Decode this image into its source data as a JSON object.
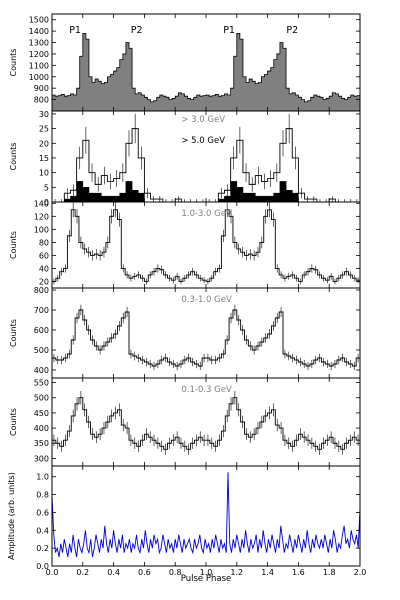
{
  "figure": {
    "xlabel": "Pulse Phase",
    "xticks": [
      "0.0",
      "0.2",
      "0.4",
      "0.6",
      "0.8",
      "1.0",
      "1.2",
      "1.4",
      "1.6",
      "1.8",
      "2.0"
    ],
    "xlim": [
      0,
      2
    ]
  },
  "colors": {
    "fill": "#808080",
    "line": "#000000",
    "blue": "#0000cc",
    "label": "#808080"
  },
  "chart_data": [
    {
      "type": "step-area",
      "ylabel": "Counts",
      "ylim": [
        700,
        1550
      ],
      "yticks": [
        "800",
        "900",
        "1000",
        "1100",
        "1200",
        "1300",
        "1400",
        "1500"
      ],
      "annotations": [
        "P1",
        "P2",
        "P1",
        "P2"
      ],
      "values": [
        840,
        830,
        835,
        845,
        830,
        835,
        850,
        840,
        900,
        1180,
        1380,
        1330,
        1000,
        950,
        980,
        960,
        940,
        950,
        1000,
        1020,
        1050,
        1080,
        1150,
        1200,
        1300,
        1250,
        900,
        850,
        860,
        840,
        820,
        800,
        780,
        790,
        820,
        840,
        830,
        820,
        800,
        810,
        830,
        860,
        850,
        830,
        810,
        800,
        820,
        840,
        830,
        835
      ]
    },
    {
      "type": "step",
      "ylabel": "Counts",
      "ylim": [
        0,
        31
      ],
      "yticks": [
        "0",
        "5",
        "10",
        "15",
        "20",
        "25",
        "30"
      ],
      "series": [
        {
          "name": "> 3.0 GeV",
          "values": [
            0,
            0,
            3,
            4,
            15,
            21,
            10,
            6,
            9,
            7,
            8,
            10,
            20,
            25,
            15,
            3,
            1,
            1,
            0,
            0,
            1,
            0,
            0,
            0,
            0
          ]
        },
        {
          "name": "> 5.0 GeV",
          "values": [
            0,
            0,
            1,
            2,
            7,
            5,
            3,
            3,
            2,
            2,
            2,
            3,
            7,
            4,
            3,
            0,
            0,
            0,
            0,
            0,
            0,
            0,
            0,
            0,
            0
          ]
        }
      ]
    },
    {
      "type": "step",
      "ylabel": "Counts",
      "ylim": [
        10,
        142
      ],
      "yticks": [
        "20",
        "40",
        "60",
        "80",
        "100",
        "120",
        "140"
      ],
      "series": [
        {
          "name": "1.0-3.0 GeV",
          "values": [
            20,
            25,
            35,
            40,
            90,
            130,
            120,
            80,
            70,
            65,
            60,
            62,
            60,
            65,
            80,
            120,
            130,
            115,
            40,
            30,
            25,
            28,
            30,
            25,
            20,
            30,
            35,
            40,
            38,
            30,
            25,
            22,
            28,
            20,
            25,
            30,
            35,
            30,
            25,
            22
          ]
        }
      ]
    },
    {
      "type": "step",
      "ylabel": "Counts",
      "ylim": [
        360,
        810
      ],
      "yticks": [
        "400",
        "500",
        "600",
        "700",
        "800"
      ],
      "series": [
        {
          "name": "0.3-1.0 GeV",
          "values": [
            460,
            450,
            450,
            460,
            480,
            550,
            660,
            700,
            650,
            600,
            550,
            520,
            500,
            520,
            540,
            560,
            580,
            620,
            660,
            690,
            480,
            470,
            460,
            450,
            440,
            430,
            420,
            430,
            450,
            460,
            440,
            430,
            420,
            430,
            450,
            460,
            440,
            430,
            420,
            460
          ]
        }
      ]
    },
    {
      "type": "step",
      "ylabel": "Counts",
      "ylim": [
        275,
        565
      ],
      "yticks": [
        "300",
        "350",
        "400",
        "450",
        "500",
        "550"
      ],
      "series": [
        {
          "name": "0.1-0.3 GeV",
          "values": [
            360,
            350,
            340,
            360,
            390,
            440,
            480,
            500,
            460,
            420,
            380,
            370,
            380,
            400,
            420,
            440,
            450,
            460,
            410,
            400,
            360,
            350,
            340,
            360,
            380,
            370,
            360,
            350,
            340,
            330,
            350,
            360,
            370,
            350,
            340,
            330,
            350,
            360,
            370,
            360
          ]
        }
      ]
    },
    {
      "type": "line",
      "ylabel": "Amplitude (arb. units)",
      "ylim": [
        0,
        1.12
      ],
      "yticks": [
        "0.0",
        "0.2",
        "0.4",
        "0.6",
        "0.8",
        "1.0"
      ],
      "series": [
        {
          "name": "",
          "values": [
            0.8,
            0.35,
            0.15,
            0.2,
            0.1,
            0.25,
            0.15,
            0.3,
            0.2,
            0.1,
            0.25,
            0.15,
            0.35,
            0.2,
            0.1,
            0.3,
            0.2,
            0.15,
            0.25,
            0.4,
            0.2,
            0.15,
            0.3,
            0.1,
            0.2,
            0.35,
            0.25,
            0.15,
            0.3,
            0.2,
            0.45,
            0.25,
            0.15,
            0.3,
            0.2,
            0.4,
            0.25,
            0.15,
            0.3,
            0.2,
            0.35,
            0.15,
            0.25,
            0.2,
            0.3,
            0.15,
            0.25,
            0.2,
            0.35,
            0.2,
            0.15,
            0.3,
            0.2,
            0.4,
            0.25,
            0.15,
            0.3,
            0.2,
            0.35,
            0.25,
            0.3,
            0.15,
            0.2,
            0.35,
            0.25,
            0.15,
            0.3,
            0.2,
            0.25,
            0.15,
            0.3,
            0.2,
            0.35,
            0.25,
            0.15,
            0.3,
            0.2,
            0.25,
            0.3,
            0.2,
            0.15,
            0.3,
            0.2,
            0.25,
            0.35,
            0.2,
            0.15,
            0.3,
            0.2,
            0.25,
            0.15,
            0.3,
            0.2,
            0.35,
            0.25,
            0.15,
            0.3,
            0.2,
            0.25,
            0.15,
            1.05,
            0.25,
            0.15,
            0.3,
            0.2,
            0.35,
            0.25,
            0.15,
            0.3,
            0.2,
            0.4,
            0.25,
            0.15,
            0.3,
            0.2,
            0.25,
            0.35,
            0.15,
            0.3,
            0.2,
            0.4,
            0.25,
            0.15,
            0.3,
            0.2,
            0.35,
            0.25,
            0.15,
            0.3,
            0.2,
            0.45,
            0.3,
            0.15,
            0.25,
            0.2,
            0.35,
            0.25,
            0.15,
            0.3,
            0.2,
            0.35,
            0.25,
            0.15,
            0.3,
            0.2,
            0.4,
            0.25,
            0.15,
            0.3,
            0.2,
            0.35,
            0.25,
            0.2,
            0.3,
            0.2,
            0.35,
            0.25,
            0.15,
            0.3,
            0.2,
            0.4,
            0.3,
            0.15,
            0.25,
            0.2,
            0.35,
            0.45,
            0.25,
            0.3,
            0.2,
            0.4,
            0.3,
            0.25,
            0.35,
            0.2,
            0.65
          ]
        }
      ]
    }
  ]
}
